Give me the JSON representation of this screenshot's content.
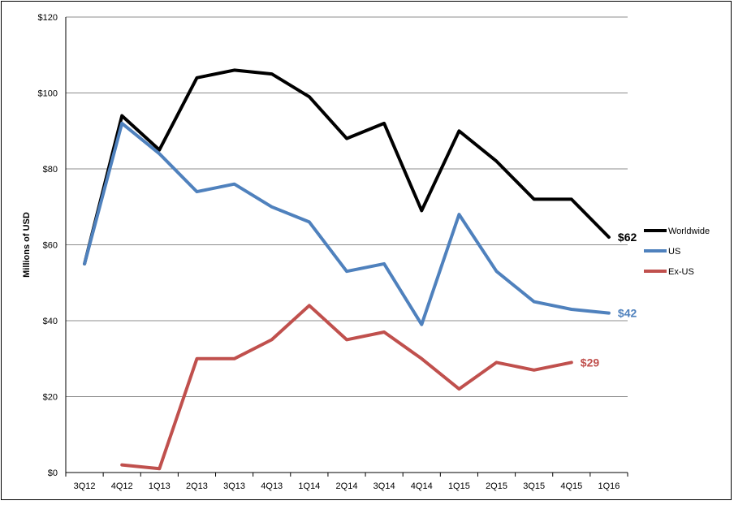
{
  "chart_data": {
    "type": "line",
    "title": "",
    "xlabel": "",
    "ylabel": "Millions of USD",
    "ylim": [
      0,
      120
    ],
    "y_ticks": [
      "$0",
      "$20",
      "$40",
      "$60",
      "$80",
      "$100",
      "$120"
    ],
    "y_tick_values": [
      0,
      20,
      40,
      60,
      80,
      100,
      120
    ],
    "categories": [
      "3Q12",
      "4Q12",
      "1Q13",
      "2Q13",
      "3Q13",
      "4Q13",
      "1Q14",
      "2Q14",
      "3Q14",
      "4Q14",
      "1Q15",
      "2Q15",
      "3Q15",
      "4Q15",
      "1Q16"
    ],
    "grid": "horizontal",
    "legend_position": "right",
    "series": [
      {
        "name": "Worldwide",
        "color": "#000000",
        "values": [
          55,
          94,
          85,
          104,
          106,
          105,
          99,
          88,
          92,
          69,
          90,
          82,
          72,
          72,
          62
        ],
        "end_label": "$62"
      },
      {
        "name": "US",
        "color": "#4f81bd",
        "values": [
          55,
          92,
          84,
          74,
          76,
          70,
          66,
          53,
          55,
          39,
          68,
          53,
          45,
          43,
          42
        ],
        "end_label": "$42"
      },
      {
        "name": "Ex-US",
        "color": "#c0504d",
        "values": [
          null,
          2,
          1,
          30,
          30,
          35,
          44,
          35,
          37,
          30,
          22,
          29,
          27,
          29,
          null
        ],
        "end_label": "$29"
      }
    ]
  }
}
